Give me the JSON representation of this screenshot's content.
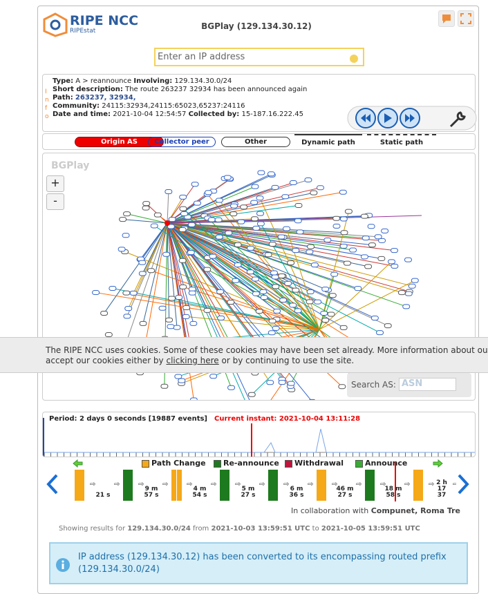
{
  "header": {
    "logo_title": "RIPE NCC",
    "logo_subtitle": "RIPEstat",
    "title": "BGPlay (129.134.30.12)",
    "search_placeholder": "Enter an IP address"
  },
  "info": {
    "side_label": "Info",
    "type_label": "Type:",
    "type_value": "A > reannounce",
    "involving_label": "Involving:",
    "involving_value": "129.134.30.0/24",
    "short_label": "Short description:",
    "short_value": "The route 263237 32934 has been announced again",
    "path_label": "Path:",
    "path_value": "263237, 32934,",
    "community_label": "Community:",
    "community_value": "24115:32934,24115:65023,65237:24116",
    "date_label": "Date and time:",
    "date_value": "2021-10-04 12:54:57",
    "collected_label": "Collected by:",
    "collected_value": "15-187.16.222.45"
  },
  "legend": {
    "origin": "Origin AS",
    "collector": "Collector peer",
    "other": "Other",
    "dynamic": "Dynamic path",
    "static": "Static path"
  },
  "graph": {
    "watermark": "BGPlay",
    "zoom_in": "+",
    "zoom_out": "-",
    "search_label": "Search AS:",
    "search_placeholder": "ASN"
  },
  "cookie": {
    "line1": "The RIPE NCC uses cookies. Some of these cookies may have been set already. More information about our",
    "line2_start": "accept our cookies either by ",
    "link": "clicking here",
    "line2_end": " or by continuing to use the site."
  },
  "timeline": {
    "period": "Period: 2 days 0 seconds [19887 events]",
    "current": "Current instant: 2021-10-04 13:11:28"
  },
  "events": {
    "legend": [
      "Path Change",
      "Re-announce",
      "Withdrawal",
      "Announce"
    ],
    "durations": [
      [
        "21 s"
      ],
      [
        "9 m",
        "57 s"
      ],
      [
        "4 m",
        "54 s"
      ],
      [
        "5 m",
        "27 s"
      ],
      [
        "6 m",
        "36 s"
      ],
      [
        "46 m",
        "27 s"
      ],
      [
        "18 m",
        "58 s"
      ],
      [
        "2 h",
        "17",
        "37"
      ]
    ]
  },
  "footer": {
    "collab_prefix": "In collaboration with",
    "collab_names": "Compunet, Roma Tre",
    "showing": "Showing results for",
    "prefix": "129.134.30.0/24",
    "from": "from",
    "start": "2021-10-03 13:59:51 UTC",
    "to": "to",
    "end": "2021-10-05 13:59:51 UTC",
    "alert": "IP address (129.134.30.12) has been converted to its encompassing routed prefix (129.134.30.0/24)"
  }
}
